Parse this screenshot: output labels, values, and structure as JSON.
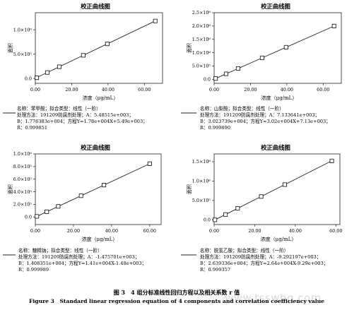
{
  "figure": {
    "caption_cn": "图 3　4 组分标准线性回归方程以及相关系数 r 值",
    "caption_en": "Figure 3　Standard linear regression equation of 4 components and correlation coefficiency value",
    "watermark": "www.tsswhg.com"
  },
  "chart_data": [
    {
      "type": "scatter",
      "title": "校正曲线图",
      "xlabel": "浓度（μg/mL）",
      "ylabel": "面积",
      "xlim": [
        0,
        70
      ],
      "ylim": [
        -100000,
        1350000
      ],
      "xticks": [
        0,
        20,
        40,
        60
      ],
      "xtick_labels": [
        "0.00",
        "20.00",
        "40.00",
        "60.00"
      ],
      "yticks": [
        0,
        500000,
        1000000
      ],
      "ytick_labels": [
        "0.0",
        "5.0×10⁵",
        "1.0×10⁶"
      ],
      "x": [
        0.8,
        6.6,
        13.2,
        26.4,
        39.6,
        66.0
      ],
      "y": [
        14700,
        122000,
        240000,
        475000,
        710000,
        1180000
      ],
      "fit_line": {
        "slope": 17800,
        "intercept": 5490
      },
      "info": [
        "名称：苯甲酸；拟合类型：线性（一阶）",
        "处理方法：191209防腐剂处理；A：5.48515e+003；",
        "B：1.776383e+004；方程Y=1.78e+004X+5.49e+003；",
        "R：0.999851"
      ]
    },
    {
      "type": "scatter",
      "title": "校正曲线图",
      "xlabel": "浓度（μg/mL）",
      "ylabel": "面积",
      "xlim": [
        0,
        70
      ],
      "ylim": [
        -150000,
        2500000
      ],
      "xticks": [
        0,
        20,
        40,
        60
      ],
      "xtick_labels": [
        "0.00",
        "20.00",
        "40.00",
        "60.00"
      ],
      "yticks": [
        0,
        500000,
        1000000,
        1500000,
        2000000,
        2500000
      ],
      "ytick_labels": [
        "0.0",
        "5.0×10⁵",
        "1.0×10⁶",
        "1.5×10⁶",
        "2.0×10⁶",
        "2.5×10⁶"
      ],
      "x": [
        0.8,
        6.6,
        13.2,
        26.4,
        39.6,
        66.0
      ],
      "y": [
        31000,
        207000,
        406000,
        805000,
        1204000,
        2000000
      ],
      "fit_line": {
        "slope": 30200,
        "intercept": 7130
      },
      "info": [
        "名称：山梨酸；拟合类型：线性（一阶）",
        "处理方法：191209防腐剂处理；A：7.133641e+003；",
        "B：3.023739e+004；方程Y=3.02e+004X+7.13e+003；",
        "R：0.999890"
      ]
    },
    {
      "type": "scatter",
      "title": "校正曲线图",
      "xlabel": "浓度（μg/mL）",
      "ylabel": "面积",
      "xlim": [
        0,
        66
      ],
      "ylim": [
        -120000,
        1000000
      ],
      "xticks": [
        0,
        20,
        40,
        60
      ],
      "xtick_labels": [
        "0.00",
        "20.00",
        "40.00",
        "60.00"
      ],
      "yticks": [
        0,
        200000,
        400000,
        600000,
        800000,
        1000000
      ],
      "ytick_labels": [
        "0.0",
        "2.0×10⁵",
        "4.0×10⁵",
        "6.0×10⁵",
        "8.0×10⁵",
        "1.0×10⁶"
      ],
      "x": [
        0.8,
        6.0,
        12.0,
        24.0,
        36.0,
        60.0
      ],
      "y": [
        9800,
        83000,
        168000,
        337000,
        506000,
        845000
      ],
      "fit_line": {
        "slope": 14100,
        "intercept": -1480
      },
      "info": [
        "名称：糖精钠；拟合类型：线性（一阶）",
        "处理方法：191209防腐剂处理；A：-1.475701e+003；",
        "B：1.408351e+004；方程Y=1.41e+004X-1.48e+003；",
        "R：0.999989"
      ]
    },
    {
      "type": "scatter",
      "title": "校正曲线图",
      "xlabel": "浓度（μg/mL）",
      "ylabel": "面积",
      "xlim": [
        0,
        62
      ],
      "ylim": [
        -120000,
        1700000
      ],
      "xticks": [
        0,
        20,
        40,
        60
      ],
      "xtick_labels": [
        "0.00",
        "20.00",
        "40.00",
        "60.00"
      ],
      "yticks": [
        0,
        500000,
        1000000,
        1500000
      ],
      "ytick_labels": [
        "0.0",
        "5.0×10⁵",
        "1.0×10⁶",
        "1.5×10⁶"
      ],
      "x": [
        0.4,
        5.6,
        11.6,
        23.2,
        34.8,
        58.0
      ],
      "y": [
        1300,
        139000,
        297000,
        603000,
        909000,
        1520000
      ],
      "fit_line": {
        "slope": 26400,
        "intercept": -9290
      },
      "info": [
        "名称：脱氢乙酸；拟合类型：线性（一阶）",
        "处理方法：191209防腐剂处理；A：-9.292197e+003；",
        "B：2.639336e+004；方程Y=2.64e+004X-9.29e+003；",
        "R：0.999357"
      ]
    }
  ]
}
